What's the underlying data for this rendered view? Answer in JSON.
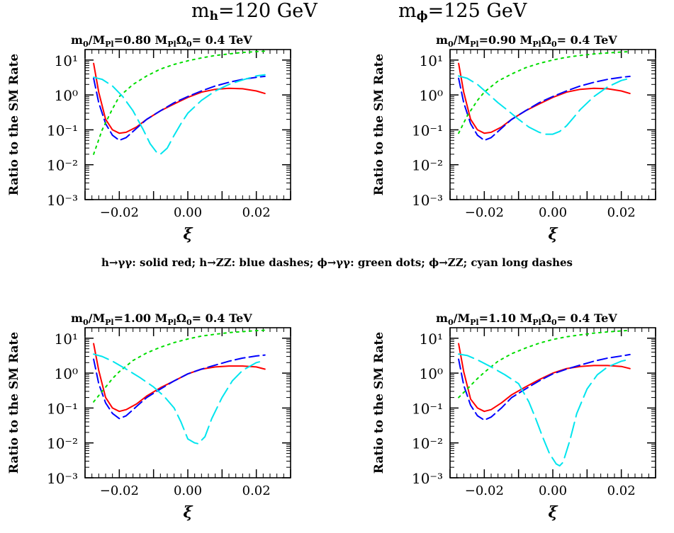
{
  "header": {
    "mh_label": "m",
    "mh_sub": "h",
    "mh_value": "=120 GeV",
    "mphi_label": "m",
    "mphi_sub": "ϕ",
    "mphi_value": "=125 GeV"
  },
  "caption": "h→γγ: solid red; h→ZZ: blue dashes; ϕ→γγ: green dots; ϕ→ZZ; cyan long dashes",
  "colors": {
    "h_gamgam": "#ff0000",
    "h_zz": "#0000ff",
    "phi_gamgam": "#00dd00",
    "phi_zz": "#00e5ee"
  },
  "chart_data": [
    {
      "type": "line",
      "title": "m0/MPl=0.80   MPlΩ0= 0.4 TeV",
      "xlabel": "ξ",
      "ylabel": "Ratio to the SM Rate",
      "xlim": [
        -0.03,
        0.03
      ],
      "ylim": [
        0.001,
        20
      ],
      "yscale": "log",
      "xticks": [
        "−0.02",
        "0.00",
        "0.02"
      ],
      "yticks": [
        "10⁻³",
        "10⁻²",
        "10⁻¹",
        "10⁰",
        "10¹"
      ],
      "series": [
        {
          "name": "h→γγ",
          "x": [
            -0.0275,
            -0.026,
            -0.024,
            -0.022,
            -0.02,
            -0.018,
            -0.015,
            -0.012,
            -0.008,
            -0.004,
            0,
            0.004,
            0.008,
            0.012,
            0.016,
            0.02,
            0.0225
          ],
          "y": [
            8,
            1.2,
            0.2,
            0.1,
            0.08,
            0.085,
            0.12,
            0.2,
            0.35,
            0.55,
            0.85,
            1.2,
            1.45,
            1.55,
            1.5,
            1.3,
            1.1
          ]
        },
        {
          "name": "h→ZZ",
          "x": [
            -0.0275,
            -0.026,
            -0.024,
            -0.022,
            -0.02,
            -0.018,
            -0.015,
            -0.012,
            -0.008,
            -0.004,
            0,
            0.004,
            0.008,
            0.012,
            0.016,
            0.02,
            0.0225
          ],
          "y": [
            3,
            0.6,
            0.15,
            0.07,
            0.05,
            0.06,
            0.11,
            0.2,
            0.35,
            0.6,
            0.9,
            1.3,
            1.8,
            2.3,
            2.8,
            3.2,
            3.4
          ]
        },
        {
          "name": "ϕ→γγ",
          "x": [
            -0.0275,
            -0.025,
            -0.022,
            -0.02,
            -0.016,
            -0.012,
            -0.008,
            -0.004,
            0,
            0.004,
            0.008,
            0.012,
            0.016,
            0.02,
            0.0225
          ],
          "y": [
            0.02,
            0.1,
            0.4,
            0.9,
            2,
            3.5,
            5.5,
            7.5,
            9.5,
            11.5,
            13.5,
            15,
            16.5,
            17.5,
            18
          ]
        },
        {
          "name": "ϕ→ZZ",
          "x": [
            -0.0275,
            -0.025,
            -0.022,
            -0.019,
            -0.016,
            -0.013,
            -0.011,
            -0.009,
            -0.008,
            -0.006,
            -0.004,
            -0.002,
            0,
            0.004,
            0.008,
            0.012,
            0.016,
            0.02,
            0.0225
          ],
          "y": [
            3.2,
            2.8,
            1.8,
            0.9,
            0.35,
            0.1,
            0.04,
            0.022,
            0.02,
            0.03,
            0.07,
            0.15,
            0.3,
            0.7,
            1.3,
            2,
            2.7,
            3.5,
            3.8
          ]
        }
      ]
    },
    {
      "type": "line",
      "title": "m0/MPl=0.90   MPlΩ0= 0.4 TeV",
      "xlabel": "ξ",
      "ylabel": "Ratio to the SM Rate",
      "xlim": [
        -0.03,
        0.03
      ],
      "ylim": [
        0.001,
        20
      ],
      "yscale": "log",
      "xticks": [
        "−0.02",
        "0.00",
        "0.02"
      ],
      "yticks": [
        "10⁻³",
        "10⁻²",
        "10⁻¹",
        "10⁰",
        "10¹"
      ],
      "series": [
        {
          "name": "h→γγ",
          "x": [
            -0.0275,
            -0.026,
            -0.024,
            -0.022,
            -0.02,
            -0.018,
            -0.015,
            -0.012,
            -0.008,
            -0.004,
            0,
            0.004,
            0.008,
            0.012,
            0.016,
            0.02,
            0.0225
          ],
          "y": [
            8,
            1.2,
            0.2,
            0.1,
            0.08,
            0.085,
            0.12,
            0.2,
            0.35,
            0.55,
            0.85,
            1.2,
            1.45,
            1.55,
            1.5,
            1.3,
            1.1
          ]
        },
        {
          "name": "h→ZZ",
          "x": [
            -0.0275,
            -0.026,
            -0.024,
            -0.022,
            -0.02,
            -0.018,
            -0.015,
            -0.012,
            -0.008,
            -0.004,
            0,
            0.004,
            0.008,
            0.012,
            0.016,
            0.02,
            0.0225
          ],
          "y": [
            3,
            0.6,
            0.15,
            0.07,
            0.05,
            0.06,
            0.11,
            0.2,
            0.35,
            0.6,
            0.9,
            1.3,
            1.8,
            2.3,
            2.8,
            3.2,
            3.4
          ]
        },
        {
          "name": "ϕ→γγ",
          "x": [
            -0.0275,
            -0.025,
            -0.022,
            -0.02,
            -0.016,
            -0.012,
            -0.008,
            -0.004,
            0,
            0.004,
            0.008,
            0.012,
            0.016,
            0.02,
            0.0225
          ],
          "y": [
            0.08,
            0.25,
            0.7,
            1.2,
            2.5,
            4,
            6,
            8,
            10,
            12,
            13.5,
            15,
            16,
            17,
            17.5
          ]
        },
        {
          "name": "ϕ→ZZ",
          "x": [
            -0.0275,
            -0.025,
            -0.022,
            -0.019,
            -0.016,
            -0.013,
            -0.01,
            -0.007,
            -0.004,
            -0.002,
            0,
            0.002,
            0.004,
            0.006,
            0.008,
            0.012,
            0.016,
            0.02,
            0.0225
          ],
          "y": [
            3.5,
            3,
            2,
            1.1,
            0.6,
            0.35,
            0.2,
            0.12,
            0.085,
            0.075,
            0.075,
            0.09,
            0.13,
            0.22,
            0.38,
            0.9,
            1.7,
            2.6,
            3
          ]
        }
      ]
    },
    {
      "type": "line",
      "title": "m0/MPl=1.00   MPlΩ0= 0.4 TeV",
      "xlabel": "ξ",
      "ylabel": "Ratio to the SM Rate",
      "xlim": [
        -0.03,
        0.03
      ],
      "ylim": [
        0.001,
        20
      ],
      "yscale": "log",
      "xticks": [
        "−0.02",
        "0.00",
        "0.02"
      ],
      "yticks": [
        "10⁻³",
        "10⁻²",
        "10⁻¹",
        "10⁰",
        "10¹"
      ],
      "series": [
        {
          "name": "h→γγ",
          "x": [
            -0.0275,
            -0.026,
            -0.024,
            -0.022,
            -0.02,
            -0.018,
            -0.015,
            -0.012,
            -0.008,
            -0.004,
            0,
            0.004,
            0.008,
            0.012,
            0.016,
            0.02,
            0.0225
          ],
          "y": [
            7,
            1.2,
            0.2,
            0.1,
            0.08,
            0.09,
            0.13,
            0.22,
            0.38,
            0.6,
            0.95,
            1.3,
            1.5,
            1.6,
            1.6,
            1.5,
            1.3
          ]
        },
        {
          "name": "h→ZZ",
          "x": [
            -0.0275,
            -0.026,
            -0.024,
            -0.022,
            -0.02,
            -0.018,
            -0.015,
            -0.012,
            -0.008,
            -0.004,
            0,
            0.004,
            0.008,
            0.012,
            0.016,
            0.02,
            0.0225
          ],
          "y": [
            2.5,
            0.5,
            0.14,
            0.07,
            0.05,
            0.06,
            0.11,
            0.2,
            0.35,
            0.6,
            0.95,
            1.3,
            1.7,
            2.2,
            2.7,
            3.1,
            3.3
          ]
        },
        {
          "name": "ϕ→γγ",
          "x": [
            -0.0275,
            -0.025,
            -0.022,
            -0.02,
            -0.016,
            -0.012,
            -0.008,
            -0.004,
            0,
            0.004,
            0.008,
            0.012,
            0.016,
            0.02,
            0.0225
          ],
          "y": [
            0.15,
            0.3,
            0.7,
            1.1,
            2.3,
            3.8,
            5.5,
            7.5,
            9.5,
            11.5,
            13,
            14.5,
            15.5,
            16.5,
            17
          ]
        },
        {
          "name": "ϕ→ZZ",
          "x": [
            -0.0275,
            -0.025,
            -0.022,
            -0.018,
            -0.014,
            -0.01,
            -0.007,
            -0.004,
            -0.002,
            0,
            0.002,
            0.003,
            0.005,
            0.007,
            0.01,
            0.013,
            0.016,
            0.02,
            0.0225
          ],
          "y": [
            3.5,
            3,
            2.2,
            1.3,
            0.75,
            0.4,
            0.22,
            0.1,
            0.04,
            0.013,
            0.01,
            0.0095,
            0.015,
            0.05,
            0.2,
            0.6,
            1.2,
            2,
            2.3
          ]
        }
      ]
    },
    {
      "type": "line",
      "title": "m0/MPl=1.10   MPlΩ0= 0.4 TeV",
      "xlabel": "ξ",
      "ylabel": "Ratio to the SM Rate",
      "xlim": [
        -0.03,
        0.03
      ],
      "ylim": [
        0.001,
        20
      ],
      "yscale": "log",
      "xticks": [
        "−0.02",
        "0.00",
        "0.02"
      ],
      "yticks": [
        "10⁻³",
        "10⁻²",
        "10⁻¹",
        "10⁰",
        "10¹"
      ],
      "series": [
        {
          "name": "h→γγ",
          "x": [
            -0.0275,
            -0.026,
            -0.024,
            -0.022,
            -0.02,
            -0.018,
            -0.015,
            -0.012,
            -0.008,
            -0.004,
            0,
            0.004,
            0.008,
            0.012,
            0.016,
            0.02,
            0.0225
          ],
          "y": [
            7,
            1.1,
            0.18,
            0.1,
            0.08,
            0.09,
            0.14,
            0.24,
            0.4,
            0.65,
            1,
            1.35,
            1.55,
            1.65,
            1.65,
            1.55,
            1.35
          ]
        },
        {
          "name": "h→ZZ",
          "x": [
            -0.0275,
            -0.026,
            -0.024,
            -0.022,
            -0.02,
            -0.018,
            -0.015,
            -0.012,
            -0.008,
            -0.004,
            0,
            0.004,
            0.008,
            0.012,
            0.016,
            0.02,
            0.0225
          ],
          "y": [
            2.5,
            0.45,
            0.12,
            0.06,
            0.045,
            0.055,
            0.1,
            0.2,
            0.35,
            0.6,
            0.95,
            1.3,
            1.7,
            2.2,
            2.7,
            3.1,
            3.4
          ]
        },
        {
          "name": "ϕ→γγ",
          "x": [
            -0.0275,
            -0.025,
            -0.022,
            -0.02,
            -0.016,
            -0.012,
            -0.008,
            -0.004,
            0,
            0.004,
            0.008,
            0.012,
            0.016,
            0.02,
            0.0225
          ],
          "y": [
            0.2,
            0.35,
            0.7,
            1.05,
            2.2,
            3.6,
            5.2,
            7.2,
            9.2,
            11,
            12.5,
            14,
            15.2,
            16.2,
            16.8
          ]
        },
        {
          "name": "ϕ→ZZ",
          "x": [
            -0.0275,
            -0.025,
            -0.022,
            -0.018,
            -0.014,
            -0.01,
            -0.007,
            -0.005,
            -0.003,
            -0.001,
            0.001,
            0.002,
            0.003,
            0.005,
            0.007,
            0.01,
            0.013,
            0.016,
            0.02,
            0.0225
          ],
          "y": [
            3.5,
            3.2,
            2.4,
            1.5,
            0.9,
            0.5,
            0.15,
            0.05,
            0.015,
            0.005,
            0.0025,
            0.0022,
            0.0028,
            0.012,
            0.07,
            0.35,
            0.9,
            1.5,
            2.2,
            2.5
          ]
        }
      ]
    }
  ]
}
